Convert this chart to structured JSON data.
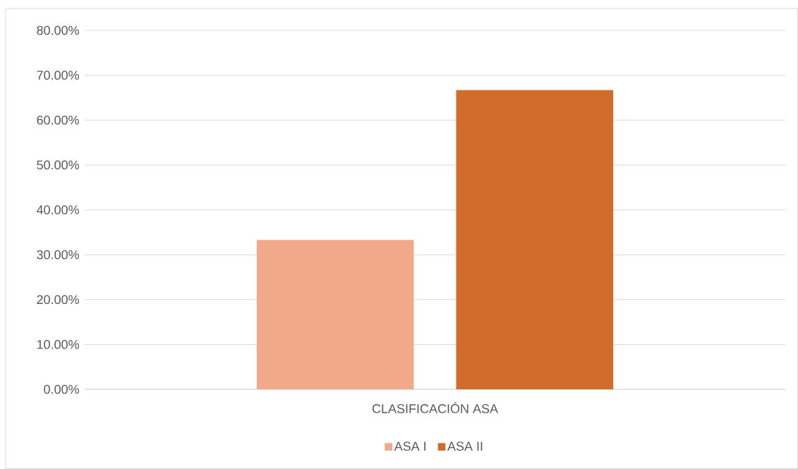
{
  "chart_data": {
    "type": "bar",
    "categories": [
      "CLASIFICACIÓN ASA"
    ],
    "series": [
      {
        "name": "ASA I",
        "color": "#f1a98a",
        "values": [
          33.3
        ]
      },
      {
        "name": "ASA II",
        "color": "#d16d2a",
        "values": [
          66.7
        ]
      }
    ],
    "ylim": [
      0,
      80
    ],
    "yticks": [
      {
        "value": 0,
        "label": "0.00%"
      },
      {
        "value": 10,
        "label": "10.00%"
      },
      {
        "value": 20,
        "label": "20.00%"
      },
      {
        "value": 30,
        "label": "30.00%"
      },
      {
        "value": 40,
        "label": "40.00%"
      },
      {
        "value": 50,
        "label": "50.00%"
      },
      {
        "value": 60,
        "label": "60.00%"
      },
      {
        "value": 70,
        "label": "70.00%"
      },
      {
        "value": 80,
        "label": "80.00%"
      }
    ],
    "grid": "y",
    "legend": "bottom"
  }
}
